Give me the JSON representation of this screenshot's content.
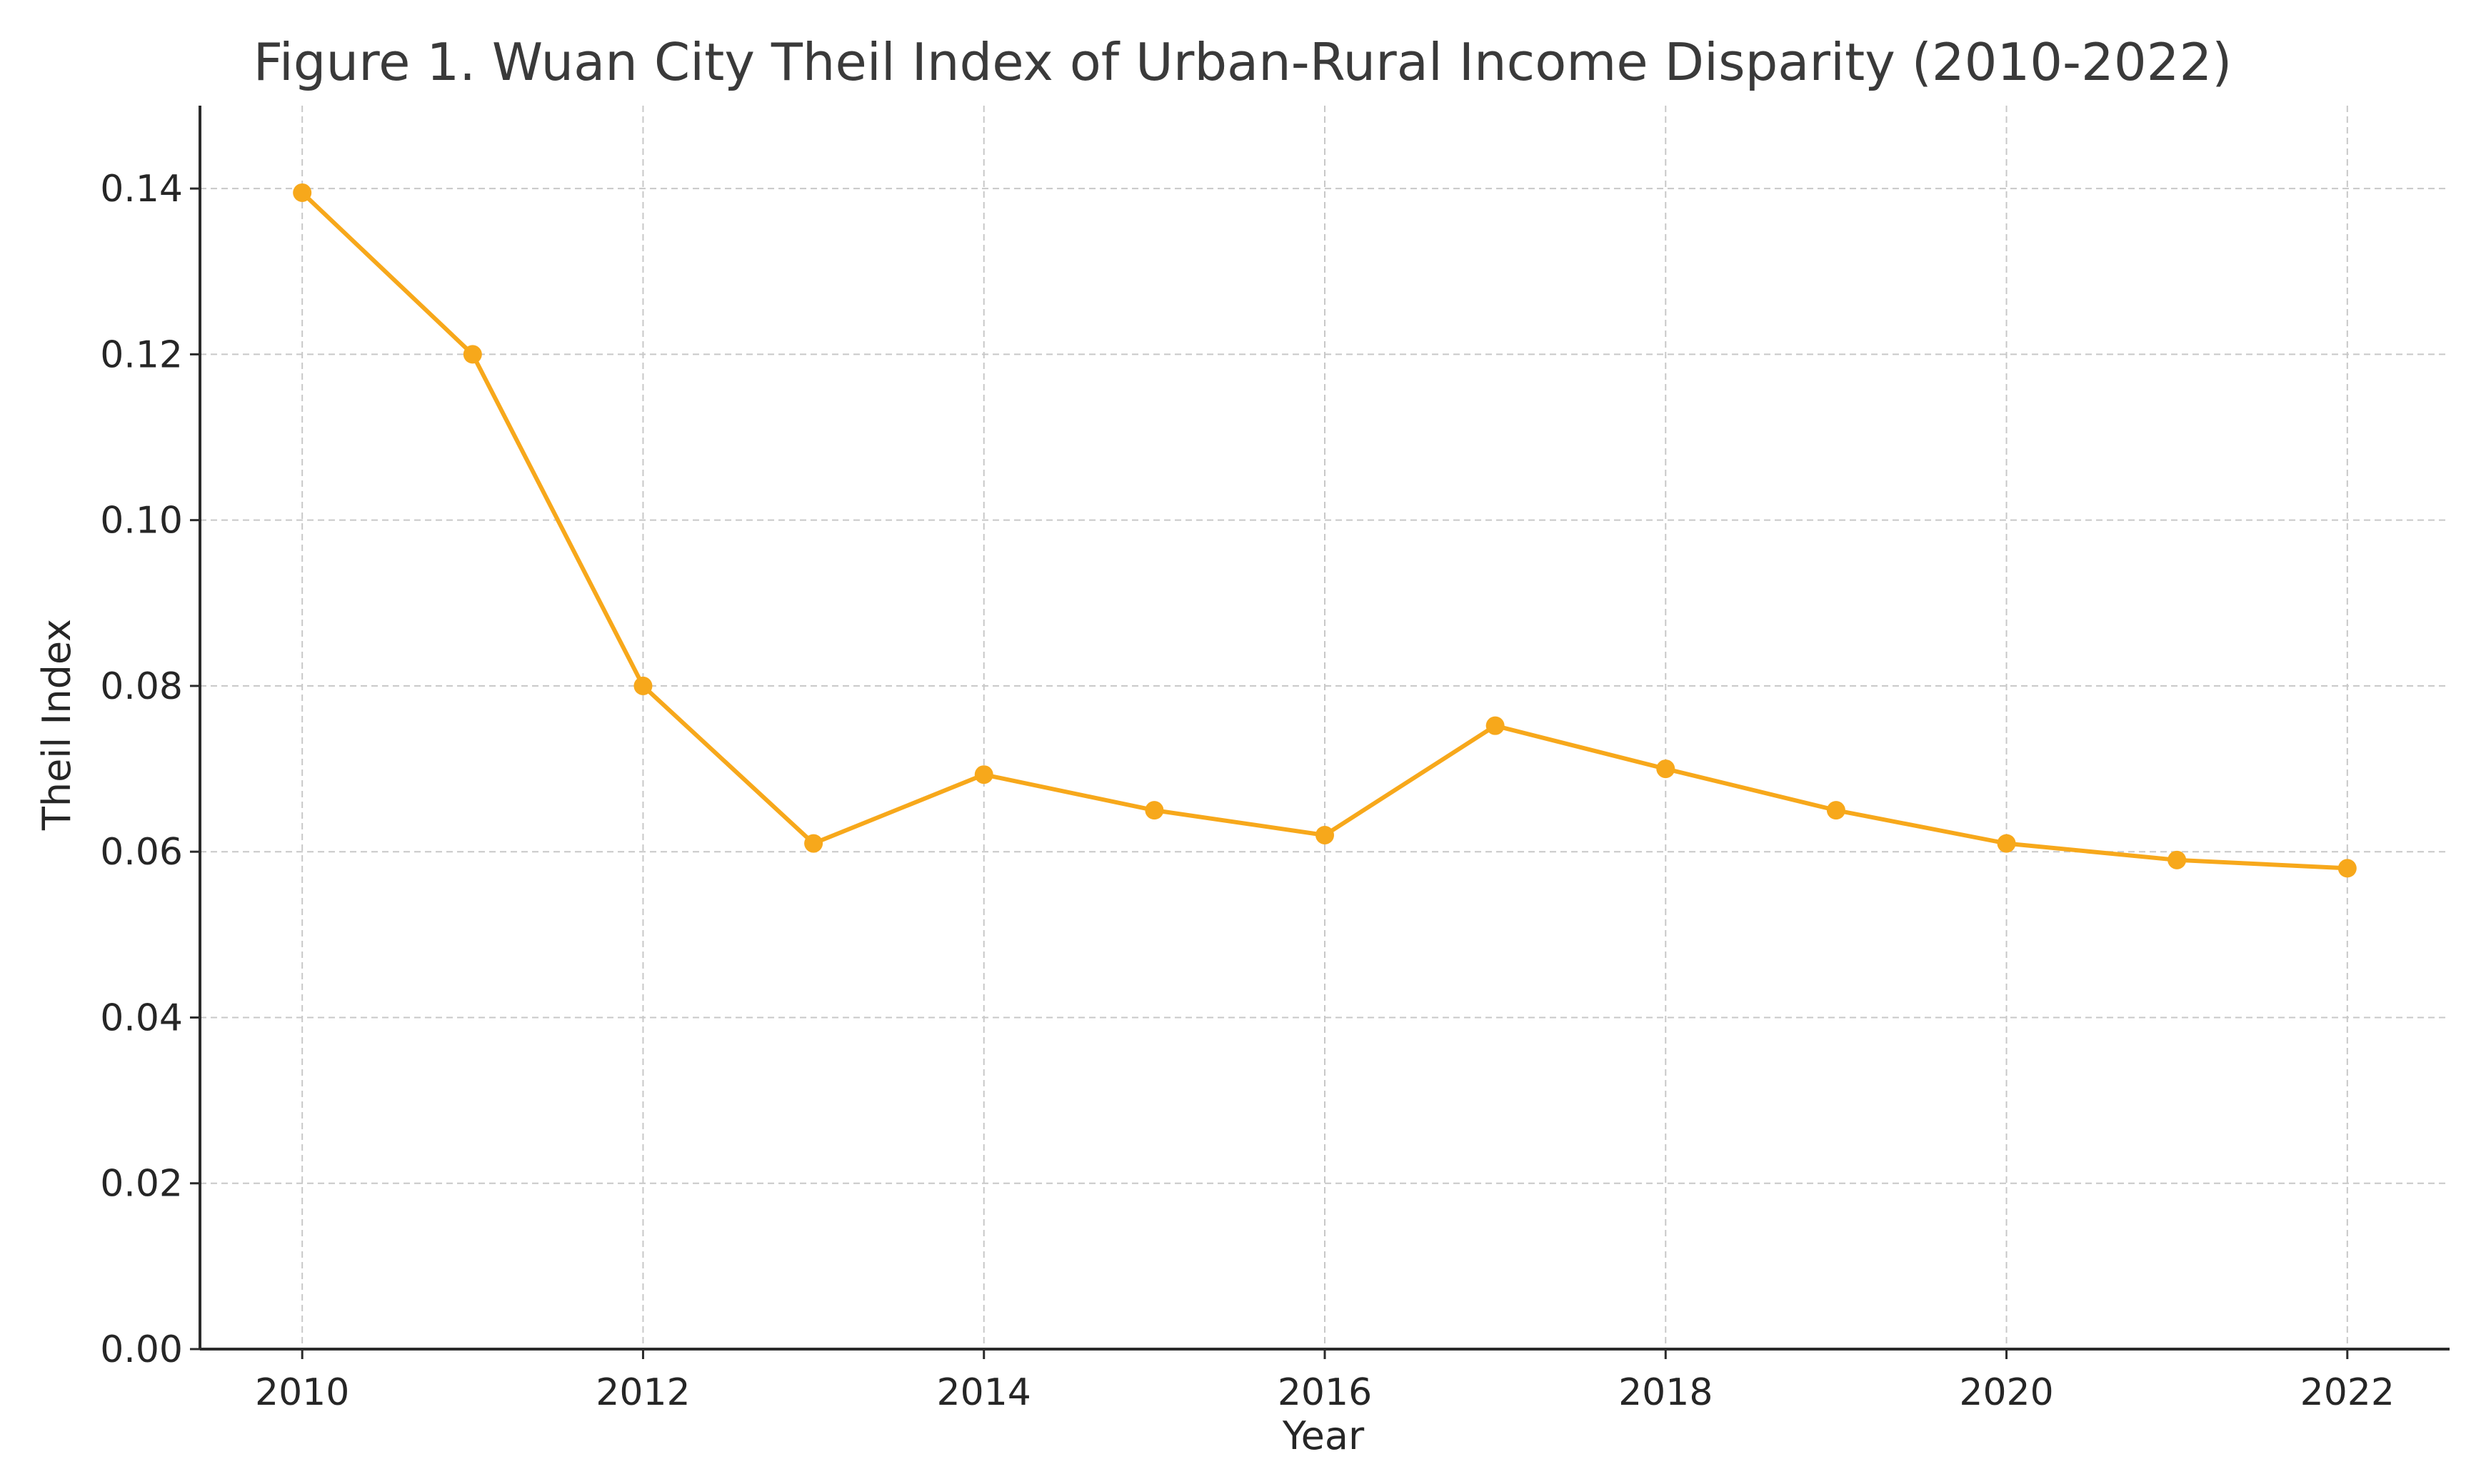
{
  "chart_data": {
    "type": "line",
    "title": "Figure 1. Wuan City Theil Index of Urban-Rural Income Disparity (2010-2022)",
    "xlabel": "Year",
    "ylabel": "Theil Index",
    "x": [
      2010,
      2011,
      2012,
      2013,
      2014,
      2015,
      2016,
      2017,
      2018,
      2019,
      2020,
      2021,
      2022
    ],
    "series": [
      {
        "values": [
          0.1395,
          0.12,
          0.08,
          0.061,
          0.0693,
          0.065,
          0.062,
          0.0752,
          0.07,
          0.065,
          0.061,
          0.059,
          0.058
        ],
        "color": "#F7A81B",
        "marker": "circle"
      }
    ],
    "xticks": [
      2010,
      2012,
      2014,
      2016,
      2018,
      2020,
      2022
    ],
    "yticks": [
      "0.00",
      "0.02",
      "0.04",
      "0.06",
      "0.08",
      "0.10",
      "0.12",
      "0.14"
    ],
    "xlim": [
      2009.4,
      2022.6
    ],
    "ylim": [
      0,
      0.15
    ],
    "grid": true,
    "legend": "none"
  }
}
